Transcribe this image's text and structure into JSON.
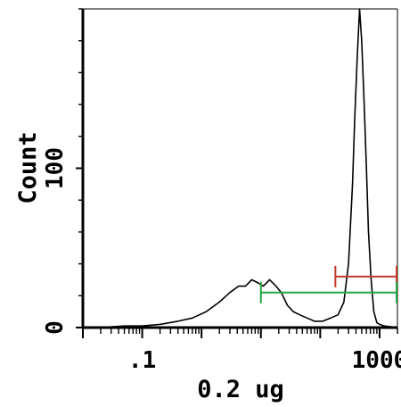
{
  "chart_data": {
    "type": "histogram",
    "xlabel": "0.2 ug",
    "ylabel": "Count",
    "xscale": "log",
    "xlim": [
      0.01,
      2000
    ],
    "ylim": [
      0,
      200
    ],
    "x_ticks": [
      {
        "value": 0.1,
        "label": ".1"
      },
      {
        "value": 1000,
        "label": "1000"
      }
    ],
    "y_ticks": [
      {
        "value": 0,
        "label": "0"
      },
      {
        "value": 100,
        "label": "100"
      }
    ],
    "grid": false,
    "histogram": {
      "color": "#000000",
      "points": [
        [
          0.01,
          0
        ],
        [
          0.02,
          0
        ],
        [
          0.05,
          1
        ],
        [
          0.1,
          1
        ],
        [
          0.2,
          2
        ],
        [
          0.4,
          4
        ],
        [
          0.7,
          6
        ],
        [
          1.2,
          10
        ],
        [
          2,
          16
        ],
        [
          3,
          22
        ],
        [
          4.2,
          26
        ],
        [
          5.5,
          26
        ],
        [
          7,
          30
        ],
        [
          9,
          28
        ],
        [
          11,
          26
        ],
        [
          14,
          30
        ],
        [
          18,
          26
        ],
        [
          22,
          22
        ],
        [
          28,
          14
        ],
        [
          35,
          10
        ],
        [
          45,
          8
        ],
        [
          60,
          6
        ],
        [
          80,
          4
        ],
        [
          110,
          4
        ],
        [
          150,
          6
        ],
        [
          200,
          8
        ],
        [
          250,
          16
        ],
        [
          300,
          40
        ],
        [
          350,
          90
        ],
        [
          380,
          130
        ],
        [
          420,
          170
        ],
        [
          460,
          200
        ],
        [
          500,
          180
        ],
        [
          550,
          140
        ],
        [
          600,
          100
        ],
        [
          650,
          60
        ],
        [
          720,
          30
        ],
        [
          800,
          10
        ],
        [
          900,
          3
        ],
        [
          1000,
          2
        ],
        [
          1200,
          1
        ],
        [
          2000,
          0
        ]
      ]
    },
    "markers": [
      {
        "color": "#c0392b",
        "x_start": 180,
        "x_end": 2000,
        "y": 32
      },
      {
        "color": "#27a644",
        "x_start": 10,
        "x_end": 2000,
        "y": 22
      }
    ]
  }
}
